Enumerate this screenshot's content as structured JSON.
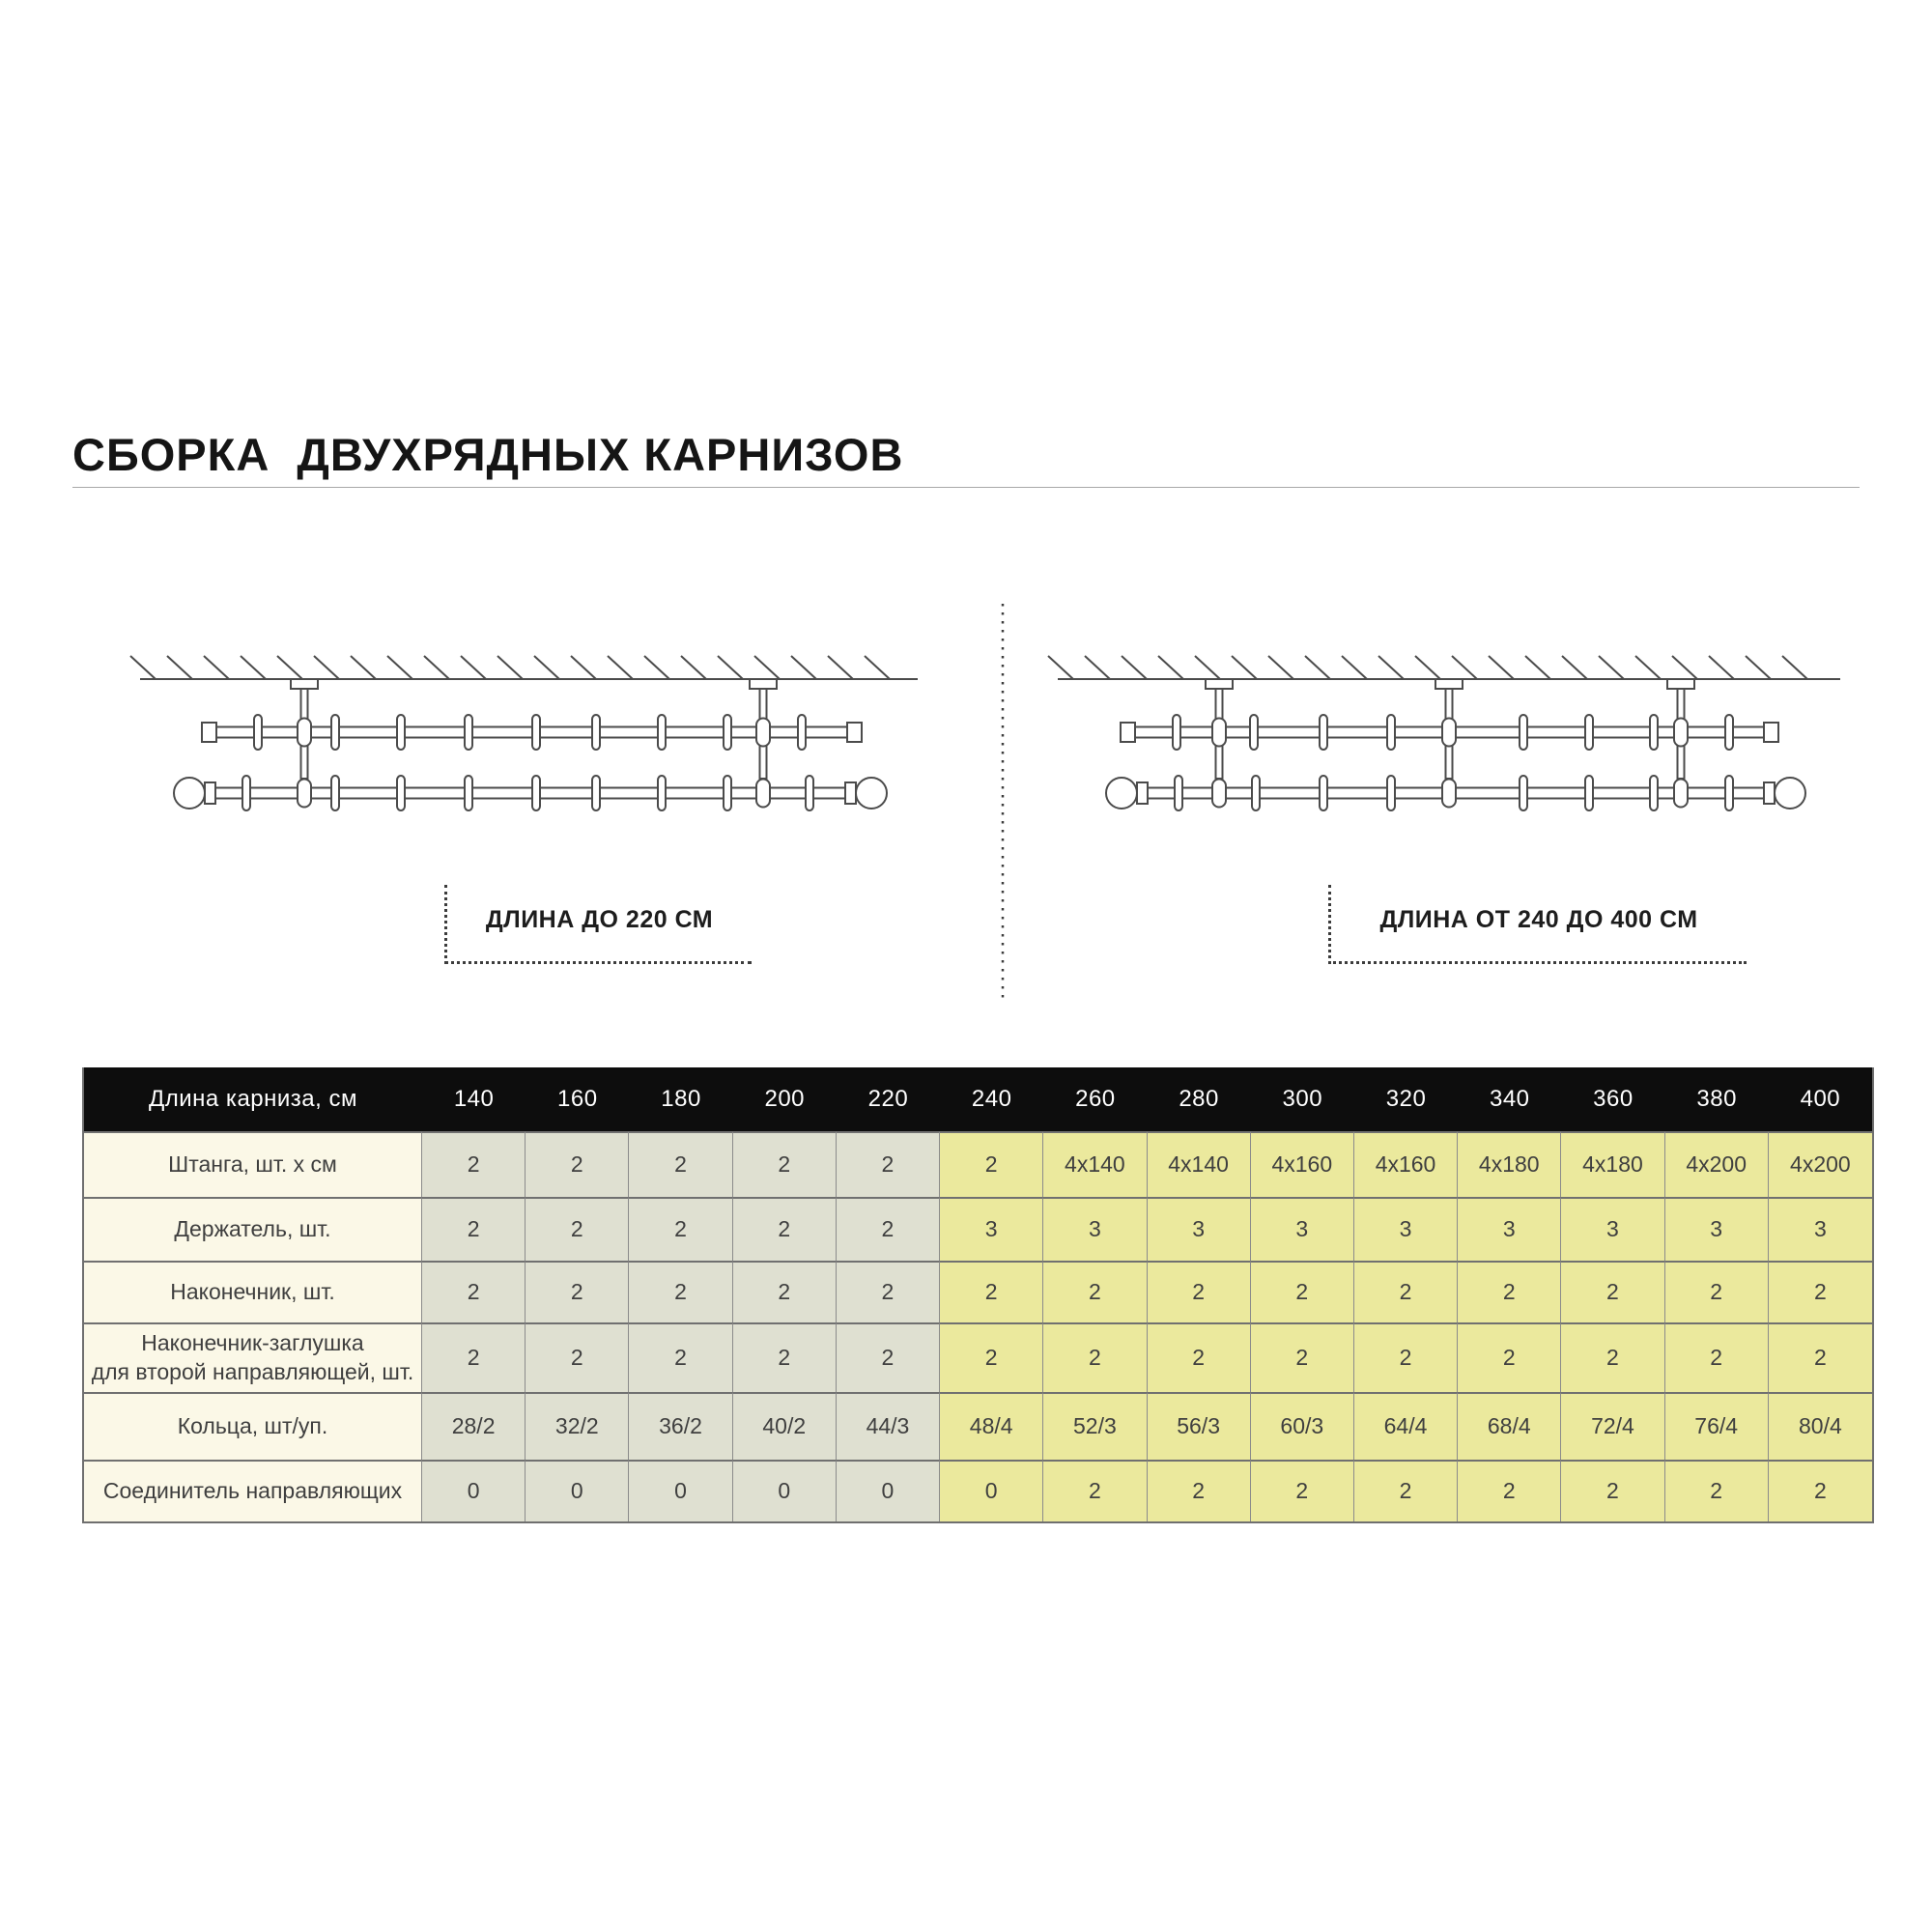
{
  "title": "СБОРКА  ДВУХРЯДНЫХ КАРНИЗОВ",
  "diagrams": {
    "left_caption": "ДЛИНА ДО 220 СМ",
    "right_caption": "ДЛИНА ОТ 240 ДО 400 СМ"
  },
  "table": {
    "header_label": "Длина карниза, см",
    "columns": [
      "140",
      "160",
      "180",
      "200",
      "220",
      "240",
      "260",
      "280",
      "300",
      "320",
      "340",
      "360",
      "380",
      "400"
    ],
    "group_split_index": 5,
    "rows": [
      {
        "label": "Штанга, шт. х см",
        "values": [
          "2",
          "2",
          "2",
          "2",
          "2",
          "2",
          "4x140",
          "4x140",
          "4x160",
          "4x160",
          "4x180",
          "4x180",
          "4x200",
          "4x200"
        ]
      },
      {
        "label": "Держатель, шт.",
        "values": [
          "2",
          "2",
          "2",
          "2",
          "2",
          "3",
          "3",
          "3",
          "3",
          "3",
          "3",
          "3",
          "3",
          "3"
        ]
      },
      {
        "label": "Наконечник, шт.",
        "values": [
          "2",
          "2",
          "2",
          "2",
          "2",
          "2",
          "2",
          "2",
          "2",
          "2",
          "2",
          "2",
          "2",
          "2"
        ]
      },
      {
        "label": "Наконечник-заглушка\nдля второй направляющей, шт.",
        "values": [
          "2",
          "2",
          "2",
          "2",
          "2",
          "2",
          "2",
          "2",
          "2",
          "2",
          "2",
          "2",
          "2",
          "2"
        ]
      },
      {
        "label": "Кольца, шт/уп.",
        "values": [
          "28/2",
          "32/2",
          "36/2",
          "40/2",
          "44/3",
          "48/4",
          "52/3",
          "56/3",
          "60/3",
          "64/4",
          "68/4",
          "72/4",
          "76/4",
          "80/4"
        ]
      },
      {
        "label": "Соединитель направляющих",
        "values": [
          "0",
          "0",
          "0",
          "0",
          "0",
          "0",
          "2",
          "2",
          "2",
          "2",
          "2",
          "2",
          "2",
          "2"
        ]
      }
    ]
  },
  "colors": {
    "header_bg": "#0d0d0d",
    "header_text": "#ffffff",
    "label_col_bg": "#fbf8e7",
    "short_group_bg": "#dfe0d1",
    "long_group_bg": "#ebe99d",
    "table_text": "#3f3f3f",
    "diagram_line": "#4b4b4b"
  }
}
